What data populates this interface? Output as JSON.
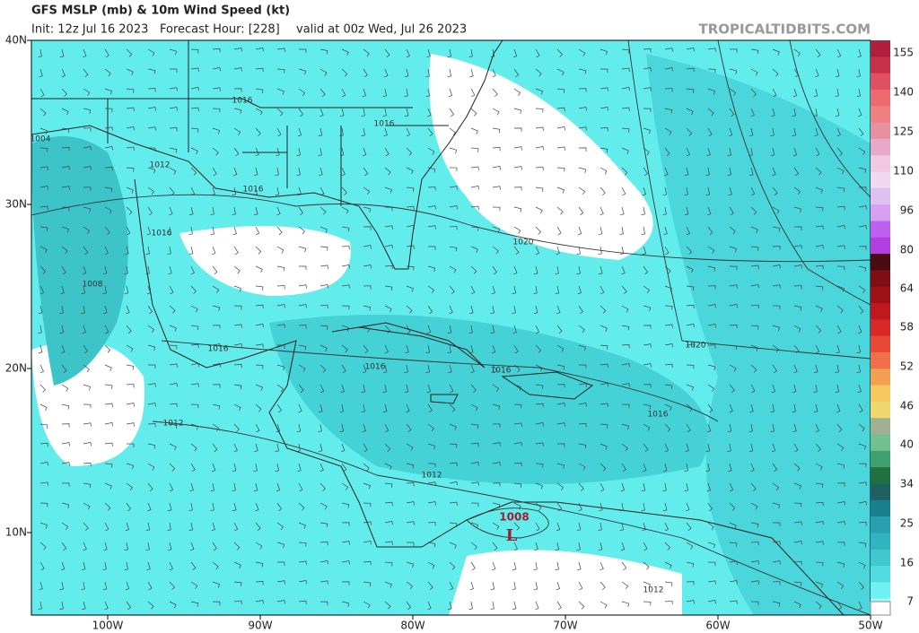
{
  "header": {
    "title": "GFS MSLP (mb) & 10m Wind Speed (kt)",
    "init": "Init: 12z Jul 16 2023",
    "forecast_hour": "Forecast Hour: [228]",
    "valid": "valid at 00z Wed, Jul 26 2023",
    "watermark": "TROPICALTIDBITS.COM"
  },
  "map": {
    "lat_labels": [
      "40N",
      "30N",
      "20N",
      "10N"
    ],
    "lon_labels": [
      "100W",
      "90W",
      "80W",
      "70W",
      "60W",
      "50W"
    ],
    "isobar_labels": [
      "1016",
      "1016",
      "1004",
      "1012",
      "1016",
      "1016",
      "1020",
      "1008",
      "1020",
      "1016",
      "1016",
      "1016",
      "1016",
      "1012",
      "1012",
      "1012"
    ],
    "low": {
      "pressure": "1008",
      "symbol": "L"
    }
  },
  "colorbar": {
    "labels": [
      "155",
      "140",
      "125",
      "110",
      "96",
      "80",
      "64",
      "58",
      "52",
      "46",
      "40",
      "34",
      "25",
      "16",
      "7"
    ]
  }
}
